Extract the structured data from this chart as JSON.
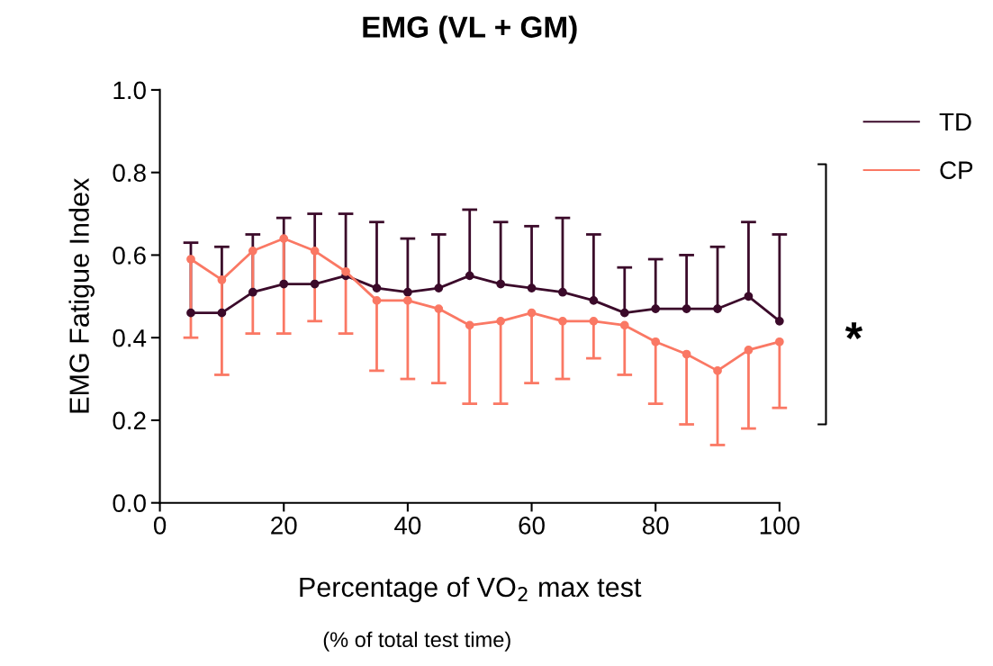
{
  "chart_data": {
    "type": "line",
    "title": "EMG (VL + GM)",
    "xlabel": "Percentage of VO$_{2}$ max test",
    "ylabel": "EMG Fatigue Index",
    "annotations": [
      "(% of total test time)",
      "*"
    ],
    "x": [
      5,
      10,
      15,
      20,
      25,
      30,
      35,
      40,
      45,
      50,
      55,
      60,
      65,
      70,
      75,
      80,
      85,
      90,
      95,
      100
    ],
    "series": [
      {
        "name": "TD",
        "color": "#3b0a2a",
        "values": [
          0.46,
          0.46,
          0.51,
          0.53,
          0.53,
          0.55,
          0.52,
          0.51,
          0.52,
          0.55,
          0.53,
          0.52,
          0.51,
          0.49,
          0.46,
          0.47,
          0.47,
          0.47,
          0.5,
          0.44
        ],
        "errors": [
          [
            0.46,
            0.63
          ],
          [
            0.46,
            0.62
          ],
          [
            0.51,
            0.65
          ],
          [
            0.53,
            0.69
          ],
          [
            0.53,
            0.7
          ],
          [
            0.55,
            0.7
          ],
          [
            0.52,
            0.68
          ],
          [
            0.51,
            0.64
          ],
          [
            0.52,
            0.65
          ],
          [
            0.55,
            0.71
          ],
          [
            0.53,
            0.68
          ],
          [
            0.52,
            0.67
          ],
          [
            0.51,
            0.69
          ],
          [
            0.49,
            0.65
          ],
          [
            0.46,
            0.57
          ],
          [
            0.47,
            0.59
          ],
          [
            0.47,
            0.6
          ],
          [
            0.47,
            0.62
          ],
          [
            0.5,
            0.68
          ],
          [
            0.44,
            0.65
          ]
        ]
      },
      {
        "name": "CP",
        "color": "#fa7864",
        "values": [
          0.59,
          0.54,
          0.61,
          0.64,
          0.61,
          0.56,
          0.49,
          0.49,
          0.47,
          0.43,
          0.44,
          0.46,
          0.44,
          0.44,
          0.43,
          0.39,
          0.36,
          0.32,
          0.37,
          0.39
        ],
        "errors": [
          [
            0.4,
            0.59
          ],
          [
            0.31,
            0.54
          ],
          [
            0.41,
            0.61
          ],
          [
            0.41,
            0.64
          ],
          [
            0.44,
            0.61
          ],
          [
            0.41,
            0.56
          ],
          [
            0.32,
            0.49
          ],
          [
            0.3,
            0.49
          ],
          [
            0.29,
            0.47
          ],
          [
            0.24,
            0.43
          ],
          [
            0.24,
            0.44
          ],
          [
            0.29,
            0.46
          ],
          [
            0.3,
            0.44
          ],
          [
            0.35,
            0.44
          ],
          [
            0.31,
            0.43
          ],
          [
            0.24,
            0.39
          ],
          [
            0.19,
            0.36
          ],
          [
            0.14,
            0.32
          ],
          [
            0.18,
            0.37
          ],
          [
            0.23,
            0.39
          ]
        ]
      }
    ],
    "xlim": [
      0,
      100
    ],
    "xticks": [
      0,
      20,
      40,
      60,
      80,
      100
    ],
    "ylim": [
      0,
      1.0
    ],
    "yticks": [
      {
        "value": 0,
        "label": "0.0"
      },
      {
        "value": 0.2,
        "label": "0.2"
      },
      {
        "value": 0.4,
        "label": "0.4"
      },
      {
        "value": 0.6,
        "label": "0.6"
      },
      {
        "value": 0.8,
        "label": "0.8"
      },
      {
        "value": 1.0,
        "label": "1.0"
      }
    ],
    "grid": false,
    "legend": "top right",
    "marker": "circle",
    "line_style": "solid"
  }
}
